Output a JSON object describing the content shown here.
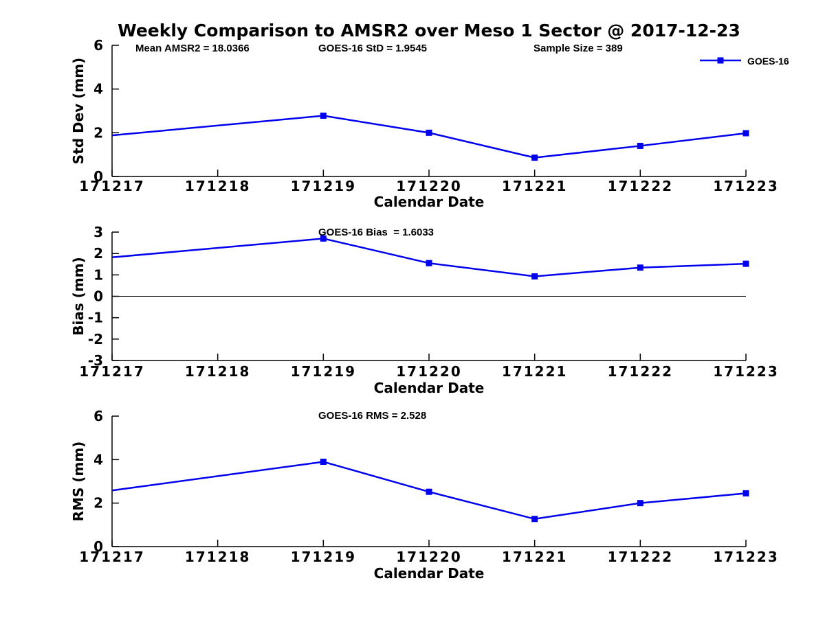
{
  "figure": {
    "title": "Weekly Comparison to AMSR2 over Meso 1 Sector @ 2017-12-23",
    "background_color": "#ffffff"
  },
  "colors": {
    "series_blue": "#0000ee",
    "axis_black": "#000000",
    "zero_line_black": "#000000",
    "text_black": "#000000"
  },
  "legend": {
    "label": "GOES-16",
    "position": "top-right"
  },
  "chart_data": [
    {
      "id": "std-dev",
      "type": "line",
      "title": "",
      "xlabel": "Calendar Date",
      "ylabel": "Std Dev (mm)",
      "ylim": [
        0,
        6
      ],
      "yticks": [
        "0",
        "2",
        "4",
        "6"
      ],
      "x_ticks": [
        "171217",
        "171218",
        "171219",
        "171220",
        "171221",
        "171222",
        "171223"
      ],
      "grid": false,
      "zero_line": false,
      "legend_visible": true,
      "annotations": [
        "Mean AMSR2 = 18.0366",
        "GOES-16 StD = 1.9545",
        "Sample Size = 389"
      ],
      "series": [
        {
          "name": "GOES-16",
          "color": "#0000ee",
          "marker": "square",
          "x": [
            "171217",
            "171219",
            "171220",
            "171221",
            "171222",
            "171223"
          ],
          "y": [
            1.88,
            2.78,
            2.0,
            0.86,
            1.4,
            1.98
          ]
        }
      ]
    },
    {
      "id": "bias",
      "type": "line",
      "title": "",
      "xlabel": "Calendar Date",
      "ylabel": "Bias (mm)",
      "ylim": [
        -3,
        3
      ],
      "yticks": [
        "-3",
        "-2",
        "-1",
        "0",
        "1",
        "2",
        "3"
      ],
      "x_ticks": [
        "171217",
        "171218",
        "171219",
        "171220",
        "171221",
        "171222",
        "171223"
      ],
      "grid": false,
      "zero_line": true,
      "legend_visible": false,
      "annotations": [
        "GOES-16 Bias  = 1.6033"
      ],
      "series": [
        {
          "name": "GOES-16",
          "color": "#0000ee",
          "marker": "square",
          "x": [
            "171217",
            "171219",
            "171220",
            "171221",
            "171222",
            "171223"
          ],
          "y": [
            1.82,
            2.7,
            1.55,
            0.93,
            1.34,
            1.52
          ]
        }
      ]
    },
    {
      "id": "rms",
      "type": "line",
      "title": "",
      "xlabel": "Calendar Date",
      "ylabel": "RMS (mm)",
      "ylim": [
        0,
        6
      ],
      "yticks": [
        "0",
        "2",
        "4",
        "6"
      ],
      "x_ticks": [
        "171217",
        "171218",
        "171219",
        "171220",
        "171221",
        "171222",
        "171223"
      ],
      "grid": false,
      "zero_line": false,
      "legend_visible": false,
      "annotations": [
        "GOES-16 RMS = 2.528"
      ],
      "series": [
        {
          "name": "GOES-16",
          "color": "#0000ee",
          "marker": "square",
          "x": [
            "171217",
            "171219",
            "171220",
            "171221",
            "171222",
            "171223"
          ],
          "y": [
            2.58,
            3.9,
            2.52,
            1.27,
            2.0,
            2.45
          ]
        }
      ]
    }
  ]
}
